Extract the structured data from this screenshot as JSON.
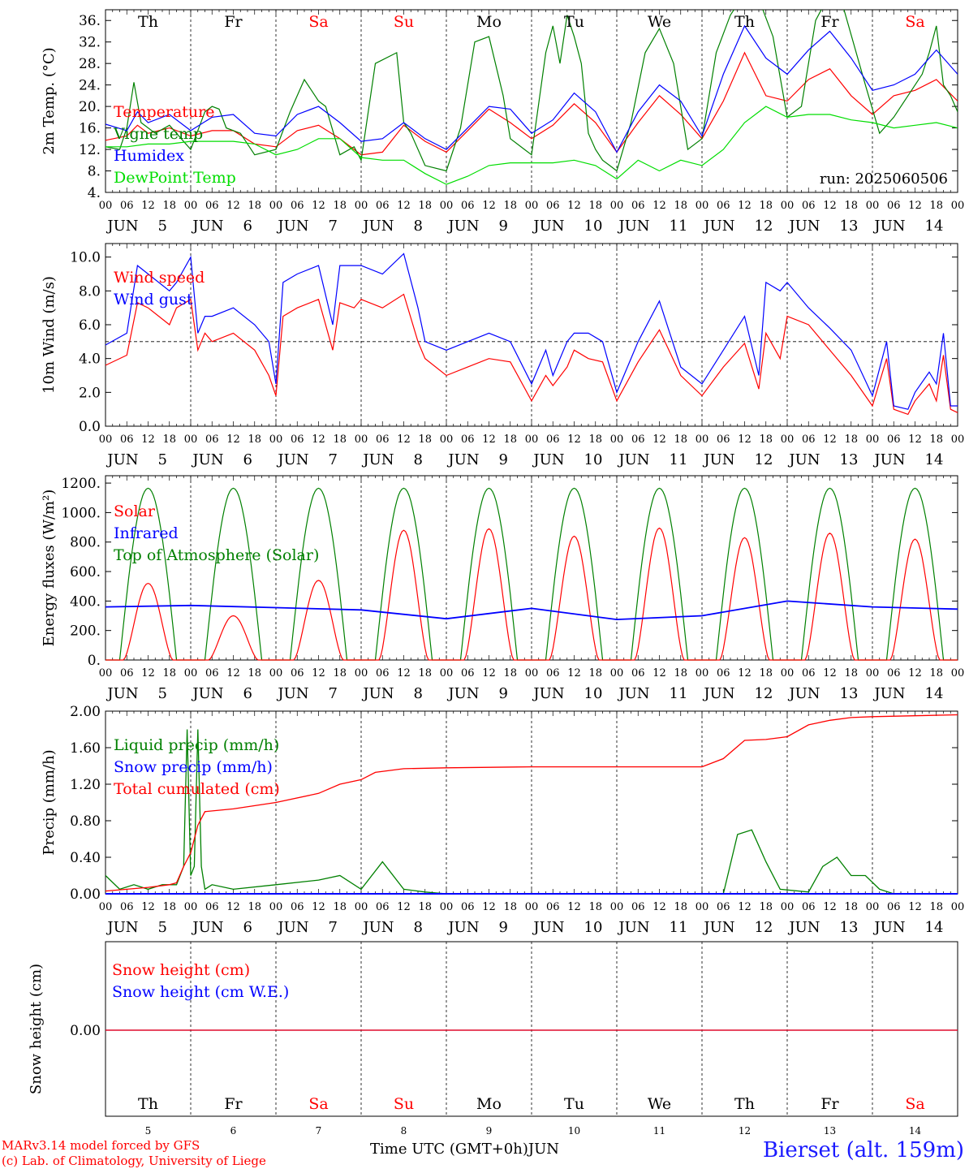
{
  "days": [
    {
      "dow": "Th",
      "date": "5",
      "weekend": false
    },
    {
      "dow": "Fr",
      "date": "6",
      "weekend": false
    },
    {
      "dow": "Sa",
      "date": "7",
      "weekend": true
    },
    {
      "dow": "Su",
      "date": "8",
      "weekend": true
    },
    {
      "dow": "Mo",
      "date": "9",
      "weekend": false
    },
    {
      "dow": "Tu",
      "date": "10",
      "weekend": false
    },
    {
      "dow": "We",
      "date": "11",
      "weekend": false
    },
    {
      "dow": "Th",
      "date": "12",
      "weekend": false
    },
    {
      "dow": "Fr",
      "date": "13",
      "weekend": false
    },
    {
      "dow": "Sa",
      "date": "14",
      "weekend": true
    }
  ],
  "month": "JUN",
  "hour_ticks": [
    "00",
    "06",
    "12",
    "18"
  ],
  "last_tick": "00",
  "run_label": "run: 2025060506",
  "x_title": "Time UTC (GMT+0h)",
  "x_month": "JUN",
  "footer": {
    "line1": "MARv3.14 model forced by GFS",
    "line2": "(c) Lab. of Climatology, University of Liege"
  },
  "station": "Bierset (alt. 159m)",
  "colors": {
    "red": "#ff0000",
    "blue": "#0000ff",
    "green": "#008000",
    "lightgreen": "#00dd00",
    "black": "#000000"
  },
  "chart_data": [
    {
      "type": "line",
      "ylabel": "2m Temp. (°C)",
      "ylim": [
        4,
        38
      ],
      "yticks": [
        "4.",
        "8.",
        "12.",
        "16.",
        "20.",
        "24.",
        "28.",
        "32.",
        "36."
      ],
      "x_unit": "hours since 00 UTC Jun 5",
      "series": [
        {
          "name": "Temperature",
          "color": "red",
          "x": [
            0,
            6,
            9,
            12,
            18,
            24,
            30,
            36,
            42,
            48,
            54,
            60,
            66,
            72,
            78,
            84,
            90,
            96,
            102,
            108,
            114,
            120,
            126,
            132,
            138,
            144,
            150,
            156,
            162,
            168,
            174,
            180,
            186,
            192,
            198,
            204,
            210,
            216,
            222,
            228,
            234,
            240
          ],
          "values": [
            13.7,
            14.5,
            16.5,
            15,
            16,
            14.5,
            15.5,
            15.5,
            13,
            12.5,
            15.5,
            16.5,
            14,
            11,
            11.5,
            16.5,
            13.5,
            11.5,
            15.5,
            19.5,
            17,
            14,
            16.5,
            20.5,
            17,
            11.5,
            17,
            22,
            18.5,
            14,
            21,
            30,
            22,
            21,
            25,
            27,
            22,
            18.5,
            22,
            23,
            25,
            21
          ]
        },
        {
          "name": "Vigne temp",
          "color": "green",
          "x": [
            0,
            4,
            6,
            8,
            10,
            14,
            18,
            24,
            28,
            30,
            32,
            34,
            38,
            42,
            48,
            52,
            56,
            60,
            62,
            66,
            70,
            72,
            76,
            82,
            84,
            86,
            90,
            96,
            100,
            104,
            108,
            112,
            114,
            118,
            120,
            124,
            126,
            128,
            130,
            132,
            134,
            136,
            138,
            140,
            142,
            144,
            148,
            152,
            156,
            160,
            164,
            168,
            172,
            176,
            180,
            184,
            188,
            192,
            196,
            200,
            204,
            208,
            214,
            218,
            222,
            226,
            230,
            232,
            234,
            236,
            238,
            240
          ],
          "values": [
            12.5,
            12,
            16,
            24.5,
            17,
            15,
            16.5,
            12,
            19,
            20,
            19.5,
            16,
            15,
            11,
            12,
            19,
            25,
            21,
            20,
            11,
            12.5,
            10,
            28,
            30,
            17,
            15,
            9,
            8,
            16,
            32,
            33,
            22,
            14,
            12,
            11,
            30,
            35,
            28,
            37,
            33,
            28,
            15,
            12,
            10,
            9,
            8,
            17,
            30,
            34.5,
            28,
            12,
            14,
            30,
            37,
            41,
            40,
            33,
            18,
            20,
            36,
            41,
            38,
            24,
            15,
            18,
            22,
            26,
            30,
            35,
            24,
            22,
            19
          ]
        },
        {
          "name": "Humidex",
          "color": "blue",
          "x": [
            0,
            6,
            9,
            12,
            18,
            24,
            30,
            36,
            42,
            48,
            54,
            60,
            66,
            72,
            78,
            84,
            90,
            96,
            102,
            108,
            114,
            120,
            126,
            132,
            138,
            144,
            150,
            156,
            162,
            168,
            174,
            180,
            186,
            192,
            198,
            204,
            210,
            216,
            222,
            228,
            234,
            240
          ],
          "values": [
            16.7,
            15.5,
            19,
            17,
            18.5,
            15.5,
            18,
            18.5,
            15,
            14.5,
            18.5,
            20,
            17,
            13.5,
            14,
            17,
            14,
            12,
            16,
            20,
            19.5,
            15,
            17.5,
            22.5,
            19,
            11.5,
            19,
            24,
            21,
            14.5,
            26,
            35,
            29,
            26,
            30.5,
            34,
            29,
            23,
            24,
            26,
            30.5,
            26
          ]
        },
        {
          "name": "DewPoint Temp",
          "color": "lightgreen",
          "x": [
            0,
            6,
            12,
            18,
            24,
            30,
            36,
            42,
            48,
            54,
            60,
            66,
            72,
            78,
            84,
            90,
            96,
            102,
            108,
            114,
            120,
            126,
            132,
            138,
            144,
            150,
            156,
            162,
            168,
            174,
            180,
            186,
            192,
            198,
            204,
            210,
            216,
            222,
            228,
            234,
            240
          ],
          "values": [
            12.5,
            12.5,
            13,
            13,
            13.5,
            13.5,
            13.5,
            13,
            11,
            12,
            14,
            14,
            10.5,
            10,
            10,
            7.5,
            5.5,
            7,
            9,
            9.5,
            9.5,
            9.5,
            10,
            9,
            6.5,
            10,
            8,
            10,
            9,
            12,
            17,
            20,
            18,
            18.5,
            18.5,
            17.5,
            17,
            16,
            16.5,
            17,
            16
          ]
        }
      ]
    },
    {
      "type": "line",
      "ylabel": "10m Wind (m/s)",
      "ylim": [
        0,
        10.8
      ],
      "yticks": [
        "0.0",
        "2.0",
        "4.0",
        "6.0",
        "8.0",
        "10.0"
      ],
      "reference_line": 5.0,
      "series": [
        {
          "name": "Wind speed",
          "color": "red",
          "x": [
            0,
            6,
            9,
            12,
            18,
            20,
            24,
            26,
            28,
            30,
            36,
            42,
            46,
            48,
            50,
            54,
            60,
            64,
            66,
            70,
            72,
            78,
            84,
            88,
            90,
            96,
            102,
            108,
            114,
            120,
            124,
            126,
            130,
            132,
            136,
            140,
            144,
            150,
            156,
            162,
            168,
            174,
            180,
            184,
            186,
            190,
            192,
            198,
            204,
            210,
            216,
            220,
            222,
            226,
            228,
            232,
            234,
            236,
            238,
            240
          ],
          "values": [
            3.6,
            4.2,
            7.3,
            7,
            6,
            7,
            7.5,
            4.5,
            5.5,
            5,
            5.5,
            4.5,
            3,
            1.8,
            6.5,
            7,
            7.5,
            4.5,
            7.3,
            7,
            7.5,
            7,
            7.8,
            5,
            4,
            3,
            3.5,
            4,
            3.8,
            1.5,
            3,
            2.4,
            3.5,
            4.5,
            4,
            3.8,
            1.5,
            3.8,
            5.7,
            3,
            1.8,
            3.5,
            4.9,
            2.2,
            5.5,
            4,
            6.5,
            6,
            4.5,
            3,
            1.2,
            4,
            1,
            0.7,
            1.5,
            2.5,
            1.5,
            4.2,
            1,
            0.8
          ]
        },
        {
          "name": "Wind gust",
          "color": "blue",
          "x": [
            0,
            6,
            9,
            12,
            18,
            20,
            24,
            26,
            28,
            30,
            36,
            42,
            46,
            48,
            50,
            54,
            60,
            64,
            66,
            70,
            72,
            78,
            84,
            88,
            90,
            96,
            102,
            108,
            114,
            120,
            124,
            126,
            130,
            132,
            136,
            140,
            144,
            150,
            156,
            162,
            168,
            174,
            180,
            184,
            186,
            190,
            192,
            198,
            204,
            210,
            216,
            220,
            222,
            226,
            228,
            232,
            234,
            236,
            238,
            240
          ],
          "values": [
            4.8,
            5.5,
            9.5,
            9,
            8,
            8.5,
            10,
            5.5,
            6.5,
            6.5,
            7,
            6,
            5,
            2.5,
            8.5,
            9,
            9.5,
            6,
            9.5,
            9.5,
            9.5,
            9,
            10.2,
            7,
            5,
            4.5,
            5,
            5.5,
            5,
            2.5,
            4.5,
            3,
            5,
            5.5,
            5.5,
            5,
            2,
            5,
            7.4,
            3.5,
            2.5,
            4.5,
            6.5,
            3,
            8.5,
            8,
            8.5,
            7,
            5.8,
            4.5,
            1.8,
            5,
            1.2,
            1,
            2,
            3.2,
            2.5,
            5.5,
            1.2,
            1.2
          ]
        }
      ]
    },
    {
      "type": "line",
      "ylabel": "Energy fluxes (W/m²)",
      "ylim": [
        0,
        1250
      ],
      "yticks": [
        "0.",
        "200.",
        "400.",
        "600.",
        "800.",
        "1000.",
        "1200."
      ],
      "series": [
        {
          "name": "Solar",
          "color": "red",
          "solar_peaks": [
            520,
            300,
            540,
            880,
            890,
            840,
            895,
            830,
            860,
            820
          ]
        },
        {
          "name": "Infrared",
          "color": "blue",
          "x": [
            0,
            24,
            48,
            72,
            96,
            120,
            144,
            168,
            192,
            216,
            240
          ],
          "values": [
            360,
            370,
            355,
            340,
            280,
            350,
            275,
            300,
            400,
            360,
            345
          ]
        },
        {
          "name": "Top of Atmosphere (Solar)",
          "color": "green",
          "daily_peak": 1165
        }
      ]
    },
    {
      "type": "line",
      "ylabel": "Precip (mm/h)",
      "ylim": [
        0,
        2.0
      ],
      "yticks": [
        "0.00",
        "0.40",
        "0.80",
        "1.20",
        "1.60",
        "2.00"
      ],
      "series": [
        {
          "name": "Liquid precip (mm/h)",
          "color": "green",
          "x": [
            0,
            4,
            8,
            12,
            16,
            20,
            22,
            23,
            24,
            25,
            26,
            27,
            28,
            30,
            36,
            48,
            60,
            66,
            72,
            78,
            84,
            90,
            96,
            144,
            174,
            178,
            182,
            186,
            190,
            198,
            202,
            206,
            210,
            214,
            218,
            222,
            240
          ],
          "values": [
            0.2,
            0.05,
            0.1,
            0.05,
            0.1,
            0.1,
            0.3,
            1.8,
            0.2,
            0.3,
            1.8,
            0.3,
            0.05,
            0.1,
            0.05,
            0.1,
            0.15,
            0.2,
            0.05,
            0.35,
            0.05,
            0.02,
            0,
            0,
            0,
            0.65,
            0.7,
            0.35,
            0.05,
            0.02,
            0.3,
            0.4,
            0.2,
            0.2,
            0.05,
            0,
            0
          ]
        },
        {
          "name": "Snow precip (mm/h)",
          "color": "blue",
          "x": [
            0,
            240
          ],
          "values": [
            0,
            0
          ]
        },
        {
          "name": "Total cumulated (cm)",
          "color": "red",
          "x": [
            0,
            6,
            12,
            18,
            20,
            22,
            24,
            26,
            28,
            36,
            48,
            60,
            66,
            72,
            76,
            84,
            96,
            120,
            144,
            168,
            174,
            180,
            186,
            192,
            198,
            204,
            210,
            216,
            240
          ],
          "values": [
            0.03,
            0.05,
            0.07,
            0.1,
            0.12,
            0.3,
            0.45,
            0.75,
            0.9,
            0.93,
            1.0,
            1.1,
            1.2,
            1.25,
            1.33,
            1.37,
            1.38,
            1.39,
            1.39,
            1.39,
            1.48,
            1.68,
            1.69,
            1.72,
            1.85,
            1.9,
            1.93,
            1.94,
            1.96
          ]
        }
      ]
    },
    {
      "type": "line",
      "ylabel": "Snow height (cm)",
      "yticks": [
        "0.00"
      ],
      "series": [
        {
          "name": "Snow height (cm)",
          "color": "red",
          "x": [
            0,
            240
          ],
          "values": [
            0,
            0
          ]
        },
        {
          "name": "Snow height (cm W.E.)",
          "color": "blue",
          "x": [
            0,
            240
          ],
          "values": [
            0,
            0
          ]
        }
      ]
    }
  ]
}
